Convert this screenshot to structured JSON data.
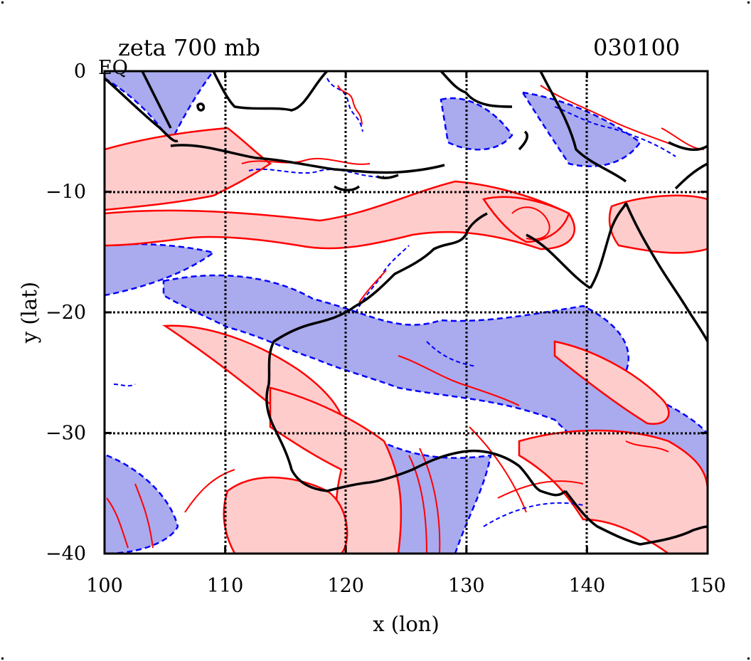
{
  "title_left": "zeta 700 mb",
  "title_right": "030100",
  "corner_label": "EQ",
  "chart_data": {
    "type": "contour-map",
    "xlabel": "x (lon)",
    "ylabel": "y (lat)",
    "xlim": [
      100,
      150
    ],
    "ylim": [
      -40,
      0
    ],
    "xticks": [
      100,
      110,
      120,
      130,
      140,
      150
    ],
    "yticks": [
      0,
      -10,
      -20,
      -30,
      -40
    ],
    "xtick_labels": [
      "100",
      "110",
      "120",
      "130",
      "140",
      "150"
    ],
    "ytick_labels": [
      "0",
      "−10",
      "−20",
      "−30",
      "−40"
    ],
    "grid": true,
    "colors": {
      "positive_fill": "#ffcccc",
      "positive_contour": "#ff0000",
      "negative_fill": "#aaaaee",
      "negative_contour": "#0000ff",
      "coastline": "#000000"
    }
  }
}
